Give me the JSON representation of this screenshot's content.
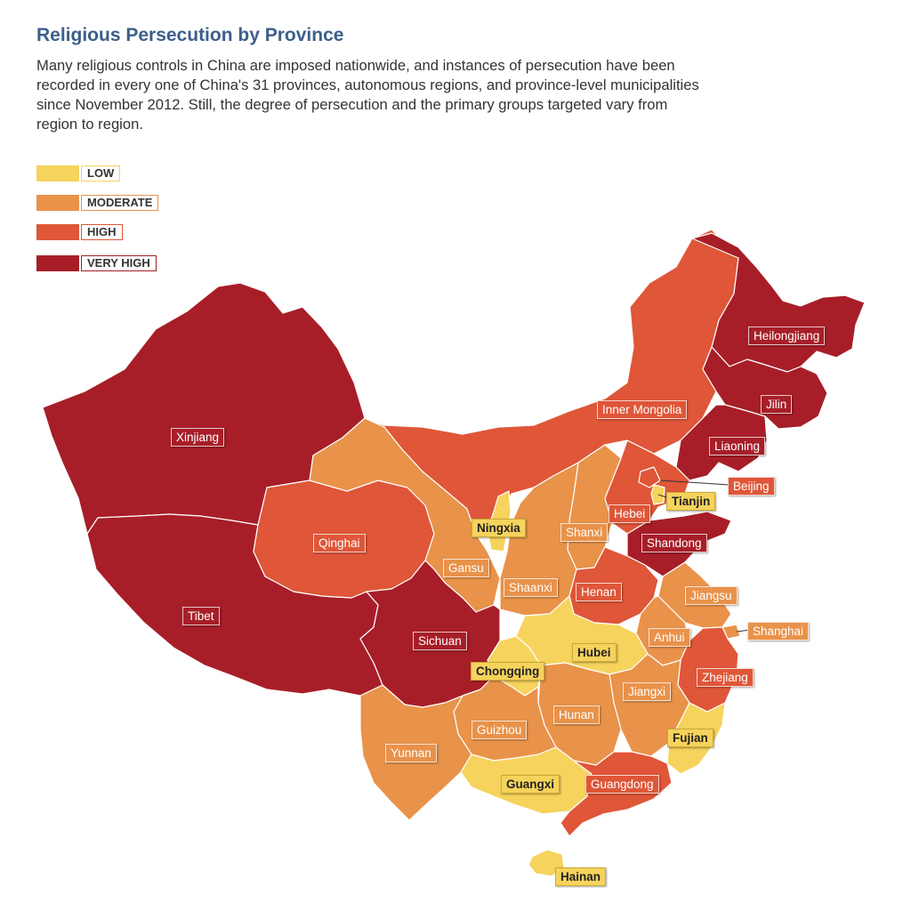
{
  "title": "Religious Persecution by Province",
  "subtitle": "Many religious controls in China are imposed nationwide, and instances of persecution have been recorded in every one of China's 31 provinces, autonomous regions, and province-level municipalities since November 2012. Still, the degree of persecution and the primary groups targeted vary from region to region.",
  "colors": {
    "low": "#f6d35c",
    "moderate": "#e9924a",
    "high": "#df5638",
    "very_high": "#a71e28",
    "title": "#3d5f8a"
  },
  "legend": [
    {
      "level": "low",
      "label": "LOW"
    },
    {
      "level": "moderate",
      "label": "MODERATE"
    },
    {
      "level": "high",
      "label": "HIGH"
    },
    {
      "level": "very_high",
      "label": "VERY HIGH"
    }
  ],
  "provinces": [
    {
      "name": "Xinjiang",
      "level": "very_high"
    },
    {
      "name": "Tibet",
      "level": "very_high"
    },
    {
      "name": "Qinghai",
      "level": "high"
    },
    {
      "name": "Gansu",
      "level": "moderate"
    },
    {
      "name": "Inner Mongolia",
      "level": "high"
    },
    {
      "name": "Heilongjiang",
      "level": "very_high"
    },
    {
      "name": "Jilin",
      "level": "very_high"
    },
    {
      "name": "Liaoning",
      "level": "very_high"
    },
    {
      "name": "Beijing",
      "level": "high"
    },
    {
      "name": "Tianjin",
      "level": "low"
    },
    {
      "name": "Hebei",
      "level": "high"
    },
    {
      "name": "Ningxia",
      "level": "low"
    },
    {
      "name": "Shanxi",
      "level": "moderate"
    },
    {
      "name": "Shandong",
      "level": "very_high"
    },
    {
      "name": "Shaanxi",
      "level": "moderate"
    },
    {
      "name": "Henan",
      "level": "high"
    },
    {
      "name": "Jiangsu",
      "level": "moderate"
    },
    {
      "name": "Anhui",
      "level": "moderate"
    },
    {
      "name": "Shanghai",
      "level": "moderate"
    },
    {
      "name": "Hubei",
      "level": "low"
    },
    {
      "name": "Sichuan",
      "level": "very_high"
    },
    {
      "name": "Chongqing",
      "level": "low"
    },
    {
      "name": "Zhejiang",
      "level": "high"
    },
    {
      "name": "Jiangxi",
      "level": "moderate"
    },
    {
      "name": "Hunan",
      "level": "moderate"
    },
    {
      "name": "Guizhou",
      "level": "moderate"
    },
    {
      "name": "Fujian",
      "level": "low"
    },
    {
      "name": "Yunnan",
      "level": "moderate"
    },
    {
      "name": "Guangxi",
      "level": "low"
    },
    {
      "name": "Guangdong",
      "level": "high"
    },
    {
      "name": "Hainan",
      "level": "low"
    }
  ]
}
